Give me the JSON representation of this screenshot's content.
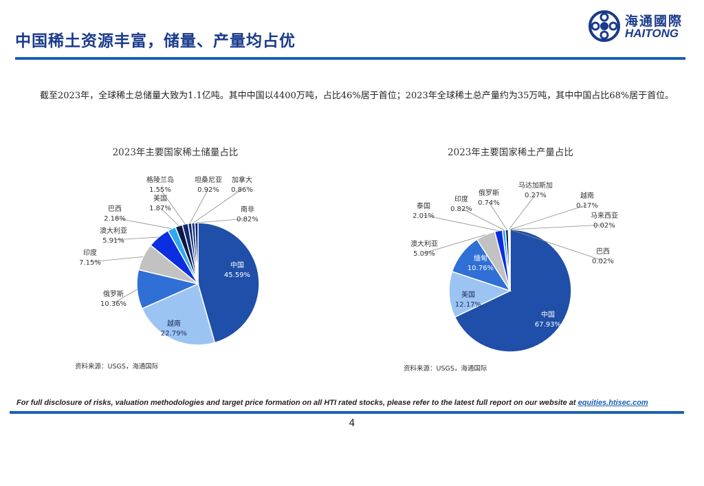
{
  "header": {
    "title": "中国稀土资源丰富，储量、产量均占优",
    "logo_cn": "海通國際",
    "logo_en": "HAITONG"
  },
  "intro": "截至2023年，全球稀土总储量大致为1.1亿吨。其中中国以4400万吨，占比46%居于首位；2023年全球稀土总产量约为35万吨，其中中国占比68%居于首位。",
  "chart_data": [
    {
      "type": "pie",
      "title": "2023年主要国家稀土储量占比",
      "source": "资料来源：USGS，海通国际",
      "slices": [
        {
          "name": "中国",
          "value": 45.59,
          "label": "45.59%",
          "color": "#1f4fa8"
        },
        {
          "name": "越南",
          "value": 22.79,
          "label": "22.79%",
          "color": "#9cc4f2"
        },
        {
          "name": "俄罗斯",
          "value": 10.36,
          "label": "10.36%",
          "color": "#2f6fd6"
        },
        {
          "name": "印度",
          "value": 7.15,
          "label": "7.15%",
          "color": "#c2c2c2"
        },
        {
          "name": "澳大利亚",
          "value": 5.91,
          "label": "5.91%",
          "color": "#0a2ee0"
        },
        {
          "name": "巴西",
          "value": 2.18,
          "label": "2.18%",
          "color": "#2eaaf0"
        },
        {
          "name": "美国",
          "value": 1.87,
          "label": "1.87%",
          "color": "#0c1a4a"
        },
        {
          "name": "格陵兰岛",
          "value": 1.55,
          "label": "1.55%",
          "color": "#132a6e"
        },
        {
          "name": "坦桑尼亚",
          "value": 0.92,
          "label": "0.92%",
          "color": "#0d2470"
        },
        {
          "name": "加拿大",
          "value": 0.86,
          "label": "0.86%",
          "color": "#1a3a8c"
        },
        {
          "name": "南非",
          "value": 0.82,
          "label": "0.82%",
          "color": "#0a1f66"
        }
      ]
    },
    {
      "type": "pie",
      "title": "2023年主要国家稀土产量占比",
      "source": "资料来源：USGS，海通国际",
      "slices": [
        {
          "name": "中国",
          "value": 67.93,
          "label": "67.93%",
          "color": "#1f4fa8"
        },
        {
          "name": "美国",
          "value": 12.17,
          "label": "12.17%",
          "color": "#9cc4f2"
        },
        {
          "name": "缅甸",
          "value": 10.76,
          "label": "10.76%",
          "color": "#2f6fd6"
        },
        {
          "name": "澳大利亚",
          "value": 5.09,
          "label": "5.09%",
          "color": "#c2c2c2"
        },
        {
          "name": "泰国",
          "value": 2.01,
          "label": "2.01%",
          "color": "#0a2ee0"
        },
        {
          "name": "印度",
          "value": 0.82,
          "label": "0.82%",
          "color": "#2eaaf0"
        },
        {
          "name": "俄罗斯",
          "value": 0.74,
          "label": "0.74%",
          "color": "#0c1a4a"
        },
        {
          "name": "马达加斯加",
          "value": 0.27,
          "label": "0.27%",
          "color": "#132a6e"
        },
        {
          "name": "越南",
          "value": 0.17,
          "label": "0.17%",
          "color": "#0d2470"
        },
        {
          "name": "马来西亚",
          "value": 0.02,
          "label": "0.02%",
          "color": "#1a3a8c"
        },
        {
          "name": "巴西",
          "value": 0.02,
          "label": "0.02%",
          "color": "#0a1f66"
        }
      ]
    }
  ],
  "footer": {
    "disclaimer": "For full disclosure of risks, valuation methodologies and target price formation on all HTI rated stocks, please refer to the latest full report on our website at",
    "link": "equities.htisec.com",
    "page": "4"
  }
}
